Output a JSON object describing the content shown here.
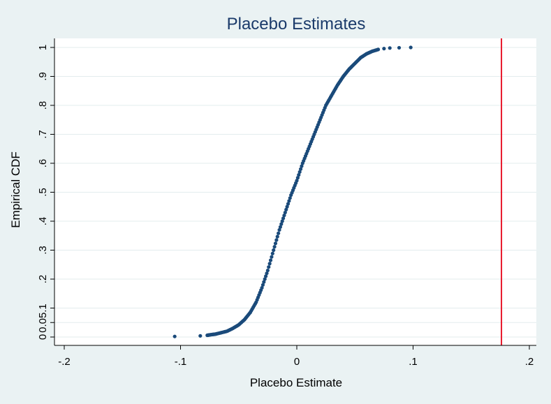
{
  "chart_data": {
    "type": "scatter",
    "title": "Placebo Estimates",
    "xlabel": "Placebo Estimate",
    "ylabel": "Empirical CDF",
    "xlim": [
      -0.2,
      0.2
    ],
    "ylim": [
      0,
      1
    ],
    "x_ticks": [
      {
        "value": -0.2,
        "label": "-.2"
      },
      {
        "value": -0.1,
        "label": "-.1"
      },
      {
        "value": 0,
        "label": "0"
      },
      {
        "value": 0.1,
        "label": ".1"
      },
      {
        "value": 0.2,
        "label": ".2"
      }
    ],
    "y_ticks": [
      {
        "value": 0,
        "label": "0"
      },
      {
        "value": 0.05,
        "label": "0.05"
      },
      {
        "value": 0.1,
        "label": ".1"
      },
      {
        "value": 0.2,
        "label": ".2"
      },
      {
        "value": 0.3,
        "label": ".3"
      },
      {
        "value": 0.4,
        "label": ".4"
      },
      {
        "value": 0.5,
        "label": ".5"
      },
      {
        "value": 0.6,
        "label": ".6"
      },
      {
        "value": 0.7,
        "label": ".7"
      },
      {
        "value": 0.8,
        "label": ".8"
      },
      {
        "value": 0.9,
        "label": ".9"
      },
      {
        "value": 1,
        "label": "1"
      }
    ],
    "grid": "horizontal",
    "reference_line": {
      "x": 0.176,
      "color": "#e8192c"
    },
    "series": [
      {
        "color": "#1a4a7a",
        "points": [
          {
            "x": -0.105,
            "y": 0.002
          },
          {
            "x": -0.083,
            "y": 0.004
          },
          {
            "x": -0.077,
            "y": 0.006
          },
          {
            "x": -0.074,
            "y": 0.008
          },
          {
            "x": -0.07,
            "y": 0.01
          },
          {
            "x": -0.065,
            "y": 0.015
          },
          {
            "x": -0.06,
            "y": 0.02
          },
          {
            "x": -0.055,
            "y": 0.03
          },
          {
            "x": -0.05,
            "y": 0.042
          },
          {
            "x": -0.045,
            "y": 0.06
          },
          {
            "x": -0.04,
            "y": 0.085
          },
          {
            "x": -0.035,
            "y": 0.12
          },
          {
            "x": -0.03,
            "y": 0.17
          },
          {
            "x": -0.025,
            "y": 0.23
          },
          {
            "x": -0.02,
            "y": 0.3
          },
          {
            "x": -0.015,
            "y": 0.37
          },
          {
            "x": -0.01,
            "y": 0.43
          },
          {
            "x": -0.005,
            "y": 0.49
          },
          {
            "x": 0,
            "y": 0.54
          },
          {
            "x": 0.005,
            "y": 0.6
          },
          {
            "x": 0.01,
            "y": 0.65
          },
          {
            "x": 0.015,
            "y": 0.7
          },
          {
            "x": 0.02,
            "y": 0.75
          },
          {
            "x": 0.025,
            "y": 0.8
          },
          {
            "x": 0.03,
            "y": 0.835
          },
          {
            "x": 0.035,
            "y": 0.87
          },
          {
            "x": 0.04,
            "y": 0.9
          },
          {
            "x": 0.045,
            "y": 0.925
          },
          {
            "x": 0.05,
            "y": 0.945
          },
          {
            "x": 0.055,
            "y": 0.965
          },
          {
            "x": 0.06,
            "y": 0.978
          },
          {
            "x": 0.065,
            "y": 0.987
          },
          {
            "x": 0.07,
            "y": 0.993
          },
          {
            "x": 0.075,
            "y": 0.996
          },
          {
            "x": 0.08,
            "y": 0.998
          },
          {
            "x": 0.088,
            "y": 0.999
          },
          {
            "x": 0.098,
            "y": 1.0
          }
        ]
      }
    ]
  }
}
